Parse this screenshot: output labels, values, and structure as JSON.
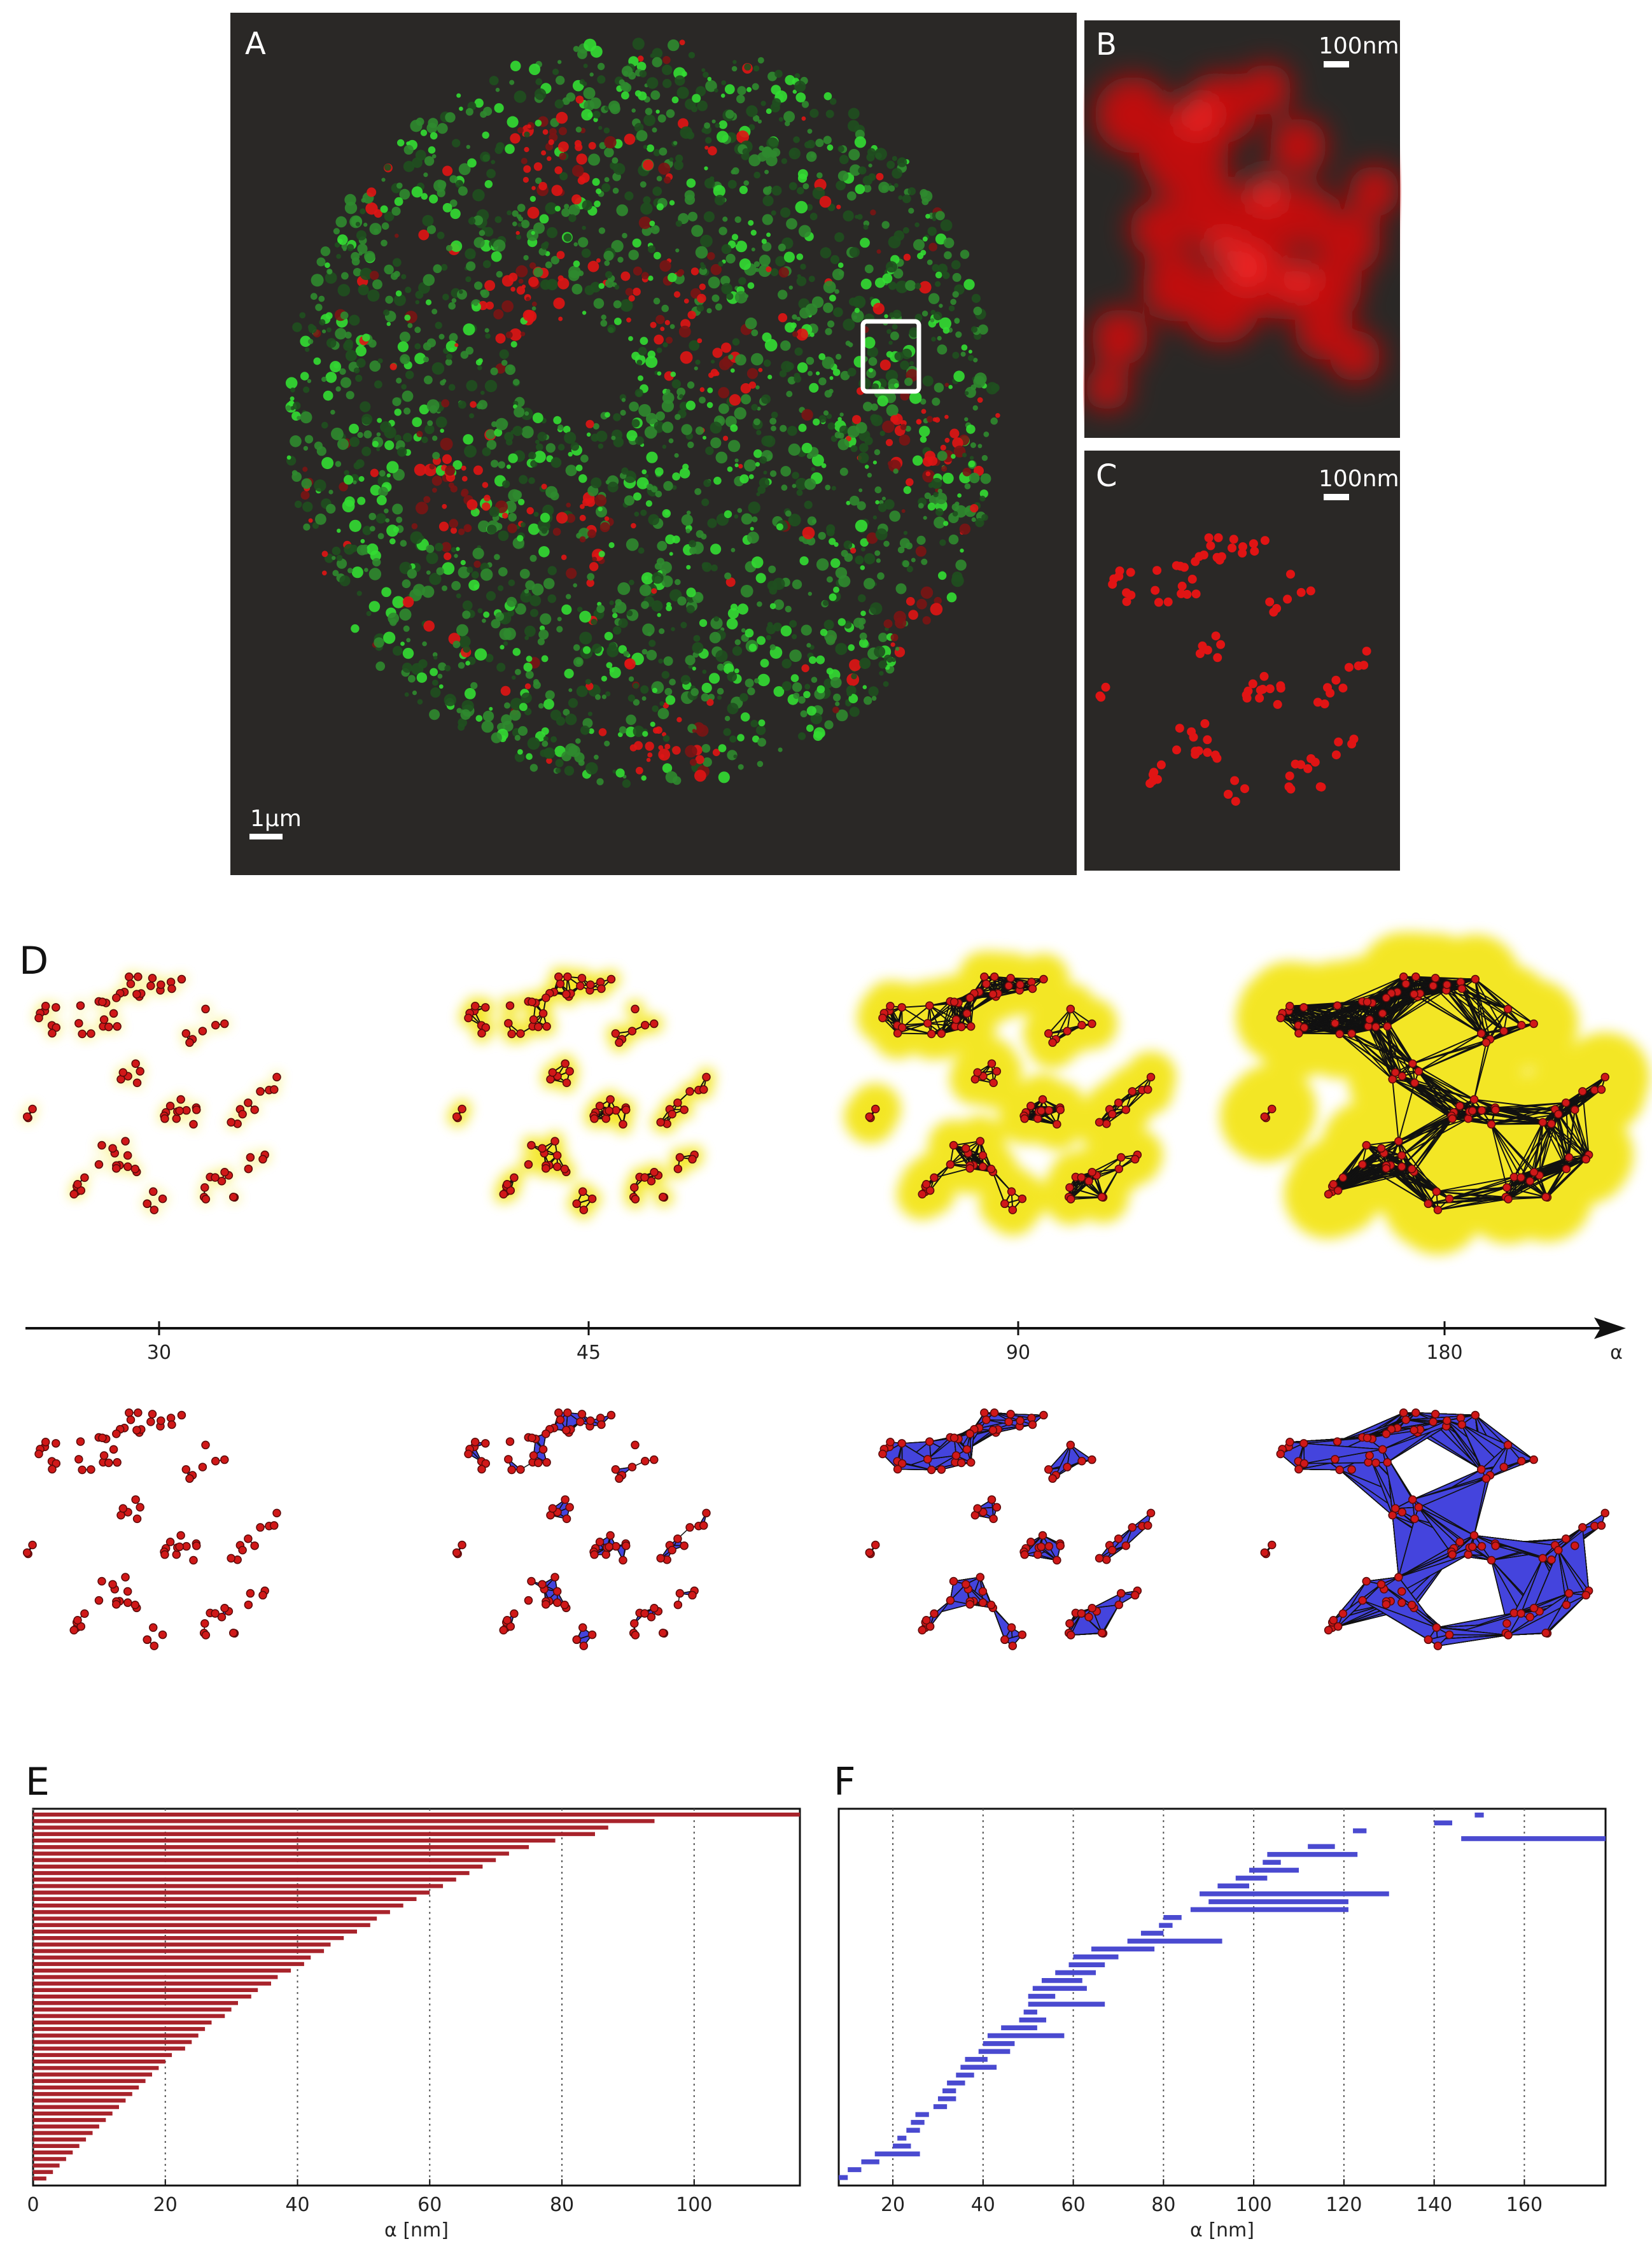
{
  "figure": {
    "panels": {
      "A": {
        "label": "A",
        "scale_bar": "1μm"
      },
      "B": {
        "label": "B",
        "scale_bar": "100nm"
      },
      "C": {
        "label": "C",
        "scale_bar": "100nm"
      },
      "D": {
        "label": "D",
        "axis_symbol": "α",
        "alpha_values": [
          "30",
          "45",
          "90",
          "180"
        ]
      },
      "E": {
        "label": "E"
      },
      "F": {
        "label": "F"
      }
    },
    "colors": {
      "background_dark": "#2a2826",
      "green_signal": "#33dd33",
      "red_signal": "#e01414",
      "yellow_shade": "#f2e200",
      "blue_fill": "#4444dd",
      "bar_red": "#a8232b",
      "bar_blue": "#4a4ad0"
    }
  },
  "chart_data": [
    {
      "type": "bar",
      "panel": "E",
      "orientation": "horizontal",
      "title": "",
      "xlabel": "α [nm]",
      "ylabel": "",
      "xlim": [
        0,
        116
      ],
      "xticks": [
        "0",
        "20",
        "40",
        "60",
        "80",
        "100"
      ],
      "grid": true,
      "bars": [
        {
          "start": 0,
          "end": 116
        },
        {
          "start": 0,
          "end": 94
        },
        {
          "start": 0,
          "end": 87
        },
        {
          "start": 0,
          "end": 85
        },
        {
          "start": 0,
          "end": 79
        },
        {
          "start": 0,
          "end": 75
        },
        {
          "start": 0,
          "end": 72
        },
        {
          "start": 0,
          "end": 70
        },
        {
          "start": 0,
          "end": 68
        },
        {
          "start": 0,
          "end": 66
        },
        {
          "start": 0,
          "end": 64
        },
        {
          "start": 0,
          "end": 62
        },
        {
          "start": 0,
          "end": 60
        },
        {
          "start": 0,
          "end": 58
        },
        {
          "start": 0,
          "end": 56
        },
        {
          "start": 0,
          "end": 54
        },
        {
          "start": 0,
          "end": 52
        },
        {
          "start": 0,
          "end": 51
        },
        {
          "start": 0,
          "end": 49
        },
        {
          "start": 0,
          "end": 47
        },
        {
          "start": 0,
          "end": 45
        },
        {
          "start": 0,
          "end": 44
        },
        {
          "start": 0,
          "end": 42
        },
        {
          "start": 0,
          "end": 41
        },
        {
          "start": 0,
          "end": 39
        },
        {
          "start": 0,
          "end": 37
        },
        {
          "start": 0,
          "end": 36
        },
        {
          "start": 0,
          "end": 34
        },
        {
          "start": 0,
          "end": 33
        },
        {
          "start": 0,
          "end": 31
        },
        {
          "start": 0,
          "end": 30
        },
        {
          "start": 0,
          "end": 29
        },
        {
          "start": 0,
          "end": 27
        },
        {
          "start": 0,
          "end": 26
        },
        {
          "start": 0,
          "end": 25
        },
        {
          "start": 0,
          "end": 24
        },
        {
          "start": 0,
          "end": 23
        },
        {
          "start": 0,
          "end": 21
        },
        {
          "start": 0,
          "end": 20
        },
        {
          "start": 0,
          "end": 19
        },
        {
          "start": 0,
          "end": 18
        },
        {
          "start": 0,
          "end": 17
        },
        {
          "start": 0,
          "end": 16
        },
        {
          "start": 0,
          "end": 15
        },
        {
          "start": 0,
          "end": 14
        },
        {
          "start": 0,
          "end": 13
        },
        {
          "start": 0,
          "end": 12
        },
        {
          "start": 0,
          "end": 11
        },
        {
          "start": 0,
          "end": 10
        },
        {
          "start": 0,
          "end": 9
        },
        {
          "start": 0,
          "end": 8
        },
        {
          "start": 0,
          "end": 7
        },
        {
          "start": 0,
          "end": 6
        },
        {
          "start": 0,
          "end": 5
        },
        {
          "start": 0,
          "end": 4
        },
        {
          "start": 0,
          "end": 3
        },
        {
          "start": 0,
          "end": 2
        }
      ]
    },
    {
      "type": "bar",
      "panel": "F",
      "orientation": "horizontal",
      "title": "",
      "xlabel": "α [nm]",
      "ylabel": "",
      "xlim": [
        8,
        178
      ],
      "xticks": [
        "20",
        "40",
        "60",
        "80",
        "100",
        "120",
        "140",
        "160"
      ],
      "grid": true,
      "bars": [
        {
          "start": 149,
          "end": 151
        },
        {
          "start": 140,
          "end": 144
        },
        {
          "start": 122,
          "end": 125
        },
        {
          "start": 146,
          "end": 178
        },
        {
          "start": 112,
          "end": 118
        },
        {
          "start": 103,
          "end": 123
        },
        {
          "start": 102,
          "end": 106
        },
        {
          "start": 99,
          "end": 110
        },
        {
          "start": 96,
          "end": 103
        },
        {
          "start": 92,
          "end": 99
        },
        {
          "start": 88,
          "end": 130
        },
        {
          "start": 90,
          "end": 121
        },
        {
          "start": 86,
          "end": 121
        },
        {
          "start": 80,
          "end": 84
        },
        {
          "start": 79,
          "end": 82
        },
        {
          "start": 75,
          "end": 80
        },
        {
          "start": 72,
          "end": 93
        },
        {
          "start": 64,
          "end": 78
        },
        {
          "start": 60,
          "end": 70
        },
        {
          "start": 59,
          "end": 67
        },
        {
          "start": 56,
          "end": 65
        },
        {
          "start": 53,
          "end": 62
        },
        {
          "start": 51,
          "end": 63
        },
        {
          "start": 50,
          "end": 56
        },
        {
          "start": 50,
          "end": 67
        },
        {
          "start": 49,
          "end": 52
        },
        {
          "start": 48,
          "end": 54
        },
        {
          "start": 44,
          "end": 52
        },
        {
          "start": 41,
          "end": 58
        },
        {
          "start": 40,
          "end": 47
        },
        {
          "start": 39,
          "end": 46
        },
        {
          "start": 36,
          "end": 41
        },
        {
          "start": 35,
          "end": 43
        },
        {
          "start": 34,
          "end": 38
        },
        {
          "start": 32,
          "end": 36
        },
        {
          "start": 31,
          "end": 34
        },
        {
          "start": 30,
          "end": 34
        },
        {
          "start": 29,
          "end": 32
        },
        {
          "start": 25,
          "end": 28
        },
        {
          "start": 24,
          "end": 27
        },
        {
          "start": 23,
          "end": 26
        },
        {
          "start": 21,
          "end": 23
        },
        {
          "start": 20,
          "end": 24
        },
        {
          "start": 16,
          "end": 26
        },
        {
          "start": 13,
          "end": 17
        },
        {
          "start": 10,
          "end": 13
        },
        {
          "start": 8,
          "end": 10
        }
      ]
    }
  ]
}
